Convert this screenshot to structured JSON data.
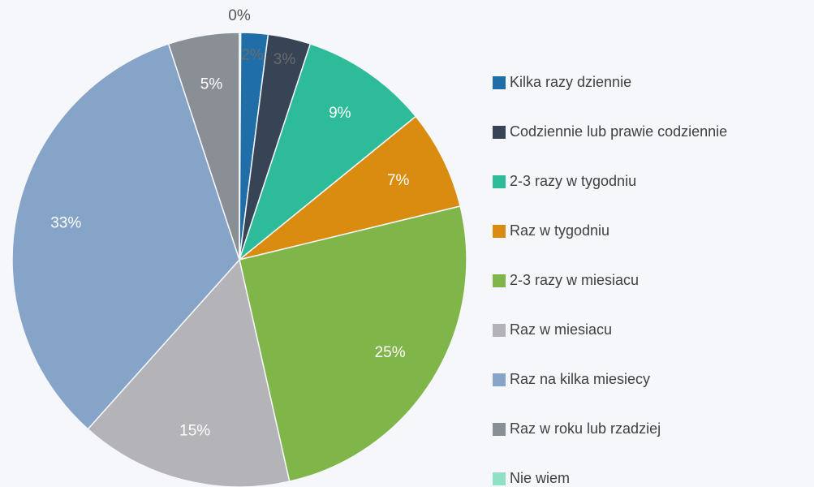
{
  "chart_data": {
    "type": "pie",
    "categories": [
      "Kilka razy dziennie",
      "Codziennie lub prawie codziennie",
      "2-3 razy w tygodniu",
      "Raz w tygodniu",
      "2-3 razy w miesiacu",
      "Raz w miesiacu",
      "Raz na kilka miesiecy",
      "Raz w roku lub rzadziej",
      "Nie wiem"
    ],
    "values": [
      2,
      3,
      9,
      7,
      25,
      15,
      33,
      5,
      0
    ],
    "value_labels": [
      "2%",
      "3%",
      "9%",
      "7%",
      "25%",
      "15%",
      "33%",
      "5%",
      "0%"
    ],
    "colors": [
      "#1f6ea8",
      "#364456",
      "#2dbb9a",
      "#d98c10",
      "#80b54a",
      "#b3b3b8",
      "#86a3c8",
      "#8a8e95",
      "#8fe0c4"
    ],
    "legend": "right"
  }
}
